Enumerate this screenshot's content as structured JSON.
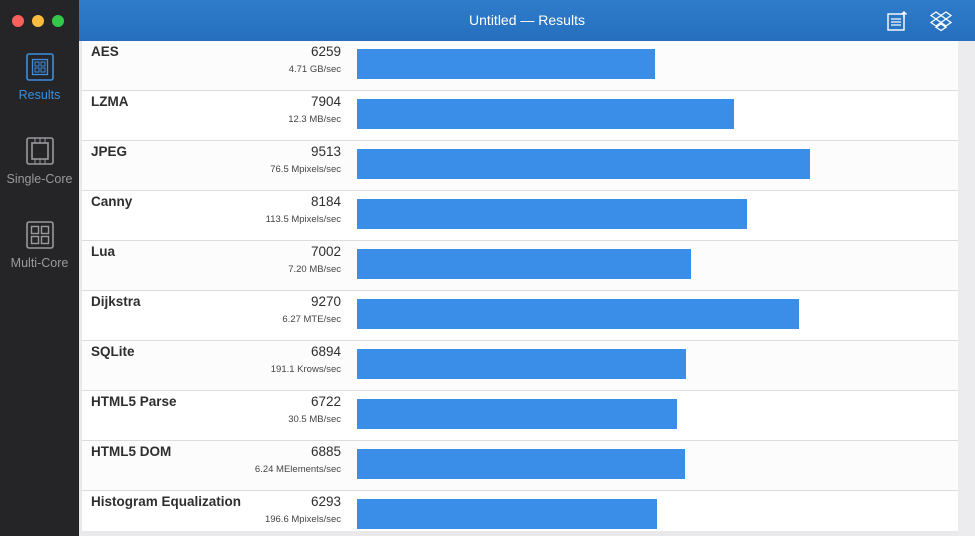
{
  "window": {
    "title": "Untitled — Results"
  },
  "sidebar": {
    "items": [
      {
        "label": "Results",
        "icon": "results-icon",
        "active": true
      },
      {
        "label": "Single-Core",
        "icon": "single-core-icon",
        "active": false
      },
      {
        "label": "Multi-Core",
        "icon": "multi-core-icon",
        "active": false
      }
    ]
  },
  "toolbar": {
    "share_icon": "share-icon",
    "dropbox_icon": "dropbox-icon"
  },
  "colors": {
    "accent": "#2a77c7",
    "bar": "#3a8ee8",
    "sidebar_bg": "#252527"
  },
  "results": {
    "max_score": 11500,
    "rows": [
      {
        "name": "AES",
        "score": "6259",
        "rate": "4.71 GB/sec"
      },
      {
        "name": "LZMA",
        "score": "7904",
        "rate": "12.3 MB/sec"
      },
      {
        "name": "JPEG",
        "score": "9513",
        "rate": "76.5 Mpixels/sec"
      },
      {
        "name": "Canny",
        "score": "8184",
        "rate": "113.5 Mpixels/sec"
      },
      {
        "name": "Lua",
        "score": "7002",
        "rate": "7.20 MB/sec"
      },
      {
        "name": "Dijkstra",
        "score": "9270",
        "rate": "6.27 MTE/sec"
      },
      {
        "name": "SQLite",
        "score": "6894",
        "rate": "191.1 Krows/sec"
      },
      {
        "name": "HTML5 Parse",
        "score": "6722",
        "rate": "30.5 MB/sec"
      },
      {
        "name": "HTML5 DOM",
        "score": "6885",
        "rate": "6.24 MElements/sec"
      },
      {
        "name": "Histogram Equalization",
        "score": "6293",
        "rate": "196.6 Mpixels/sec"
      }
    ]
  }
}
